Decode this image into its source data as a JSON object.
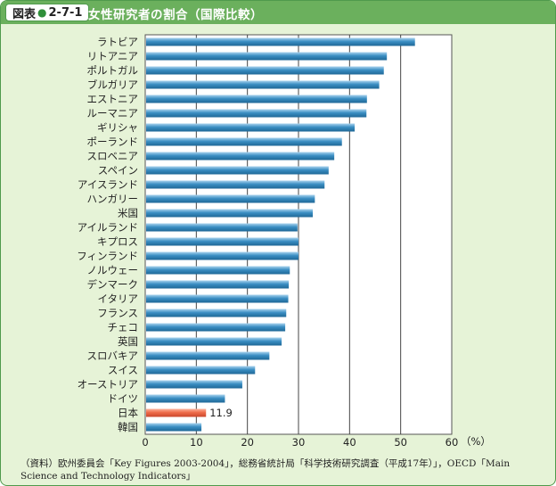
{
  "header": {
    "figure_label_prefix": "図表",
    "figure_label_number": "2-7-1",
    "title": "女性研究者の割合（国際比較）"
  },
  "colors": {
    "panel_bg": "#e6f3d7",
    "header_bg": "#6bb05d",
    "bar_blue": "#3a8ec3",
    "bar_highlight": "#ee6b4a"
  },
  "chart_data": {
    "type": "bar",
    "orientation": "horizontal",
    "categories": [
      "ラトビア",
      "リトアニア",
      "ポルトガル",
      "ブルガリア",
      "エストニア",
      "ルーマニア",
      "ギリシャ",
      "ポーランド",
      "スロベニア",
      "スペイン",
      "アイスランド",
      "ハンガリー",
      "米国",
      "アイルランド",
      "キプロス",
      "フィンランド",
      "ノルウェー",
      "デンマーク",
      "イタリア",
      "フランス",
      "チェコ",
      "英国",
      "スロバキア",
      "スイス",
      "オーストリア",
      "ドイツ",
      "日本",
      "韓国"
    ],
    "values": [
      52.8,
      47.3,
      46.7,
      45.8,
      43.4,
      43.3,
      41.0,
      38.5,
      37.0,
      35.9,
      35.1,
      33.2,
      32.8,
      29.8,
      30.0,
      30.0,
      28.3,
      28.1,
      28.0,
      27.6,
      27.4,
      26.7,
      24.3,
      21.5,
      19.0,
      15.6,
      11.9,
      11.0
    ],
    "highlight": "日本",
    "data_labels": [
      {
        "category": "日本",
        "text": "11.9"
      }
    ],
    "xlabel": "",
    "ylabel": "",
    "unit_label": "（%）",
    "xlim": [
      0,
      60
    ],
    "xticks": [
      "0",
      "10",
      "20",
      "30",
      "40",
      "50",
      "60"
    ],
    "grid": true
  },
  "source_note": "（資料）欧州委員会「Key Figures 2003-2004」，総務省統計局「科学技術研究調査（平成17年）」，OECD「Main Science and Technology Indicators」"
}
